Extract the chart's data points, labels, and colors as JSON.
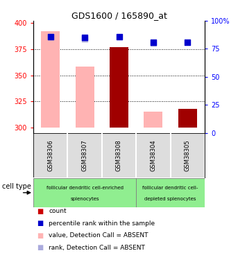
{
  "title": "GDS1600 / 165890_at",
  "samples": [
    "GSM38306",
    "GSM38307",
    "GSM38308",
    "GSM38304",
    "GSM38305"
  ],
  "ylim_left": [
    295,
    402
  ],
  "ylim_right": [
    0,
    100
  ],
  "yticks_left": [
    300,
    325,
    350,
    375,
    400
  ],
  "yticks_right": [
    0,
    25,
    50,
    75,
    100
  ],
  "yticklabels_right": [
    "0",
    "25",
    "50",
    "75",
    "100%"
  ],
  "bar_base": 300,
  "pink_values": [
    392,
    358,
    300,
    315,
    300
  ],
  "dark_red_values": [
    300,
    300,
    377,
    300,
    318
  ],
  "blue_dots_pct": [
    86,
    85,
    86,
    81,
    81
  ],
  "light_blue_dots_pct": [
    86,
    84,
    null,
    80,
    null
  ],
  "pink_color": "#FFB3B3",
  "dark_red_color": "#A00000",
  "blue_color": "#0000CD",
  "light_blue_color": "#AAAADD",
  "sample_bg_color": "#DDDDDD",
  "cell_group1_color": "#90EE90",
  "cell_group2_color": "#90EE90",
  "grid_dotline_color": "black",
  "bar_width": 0.55,
  "dot_size": 40,
  "cell_type_label": "cell type",
  "group1_label_line1": "follicular dendritic cell-enriched",
  "group1_label_line2": "splenocytes",
  "group2_label_line1": "follicular dendritic cell-",
  "group2_label_line2": "depleted splenocytes",
  "group1_samples": [
    0,
    1,
    2
  ],
  "group2_samples": [
    3,
    4
  ],
  "legend_items": [
    {
      "color": "#CC0000",
      "label": "count"
    },
    {
      "color": "#0000CC",
      "label": "percentile rank within the sample"
    },
    {
      "color": "#FFB3B3",
      "label": "value, Detection Call = ABSENT"
    },
    {
      "color": "#AAAADD",
      "label": "rank, Detection Call = ABSENT"
    }
  ]
}
